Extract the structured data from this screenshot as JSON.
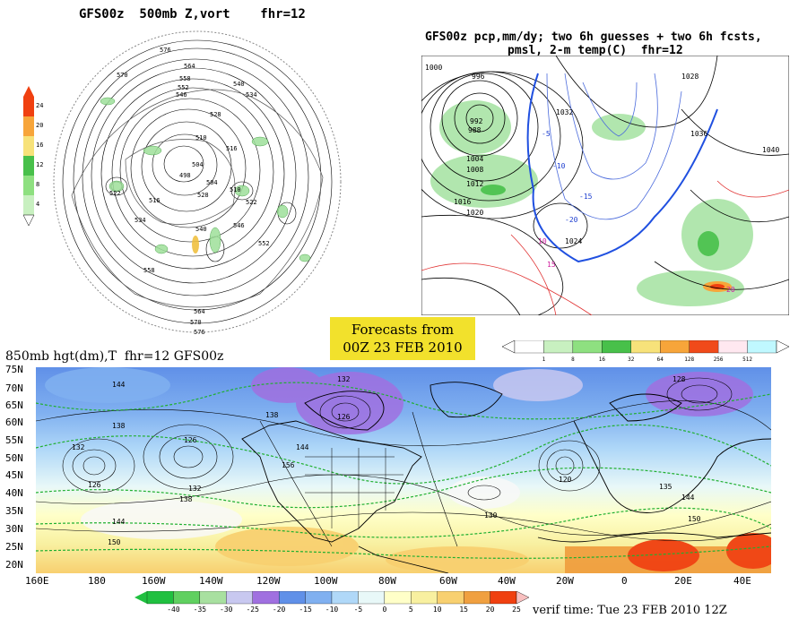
{
  "panel_500mb": {
    "title": "GFS00z  500mb Z,vort    fhr=12",
    "colorbar_ticks": [
      "24",
      "20",
      "16",
      "12",
      "8",
      "4"
    ],
    "contour_labels": [
      "576",
      "570",
      "564",
      "558",
      "552",
      "546",
      "540",
      "534",
      "528",
      "522",
      "516",
      "510",
      "504",
      "498",
      "504",
      "510",
      "516",
      "522",
      "528",
      "534",
      "540",
      "546",
      "552",
      "558",
      "564",
      "570",
      "576"
    ]
  },
  "panel_pcp": {
    "title_line1": "GFS00z pcp,mm/dy; two 6h guesses + two 6h fcsts,",
    "title_line2": "pmsl, 2-m temp(C)  fhr=12",
    "isobar_labels": [
      "1000",
      "996",
      "992",
      "988",
      "1004",
      "1008",
      "1012",
      "1016",
      "1020",
      "1024",
      "1028",
      "1032",
      "1036",
      "1040"
    ],
    "temp_labels": [
      "-5",
      "-10",
      "-15",
      "-20",
      "10",
      "15",
      "20"
    ],
    "colorbar_ticks": [
      "1",
      "8",
      "16",
      "32",
      "64",
      "128",
      "256",
      "512"
    ],
    "colorbar_colors": [
      "#ffffff",
      "#c8f0c0",
      "#8ee080",
      "#48c04a",
      "#f7e27a",
      "#f7a53a",
      "#f04a1a",
      "#ffe8f0",
      "#c0f8ff"
    ]
  },
  "forecast_box": {
    "line1": "Forecasts from",
    "line2": "00Z 23 FEB 2010"
  },
  "panel_850": {
    "title": "850mb hgt(dm),T  fhr=12 GFS00z",
    "lat_labels": [
      "75N",
      "70N",
      "65N",
      "60N",
      "55N",
      "50N",
      "45N",
      "40N",
      "35N",
      "30N",
      "25N",
      "20N"
    ],
    "lon_labels": [
      "160E",
      "180",
      "160W",
      "140W",
      "120W",
      "100W",
      "80W",
      "60W",
      "40W",
      "20W",
      "0",
      "20E",
      "40E"
    ],
    "height_labels": [
      "144",
      "138",
      "132",
      "126",
      "120",
      "126",
      "132",
      "138",
      "144",
      "150",
      "156",
      "144",
      "138",
      "132",
      "128",
      "126",
      "130",
      "135",
      "144",
      "150"
    ],
    "colorbar_ticks": [
      "-40",
      "-35",
      "-30",
      "-25",
      "-20",
      "-15",
      "-10",
      "-5",
      "0",
      "5",
      "10",
      "15",
      "20",
      "25"
    ],
    "colorbar_colors": [
      "#20c040",
      "#60d060",
      "#a8e0a0",
      "#c8c8f0",
      "#a070e0",
      "#6090e8",
      "#80b0f0",
      "#b0d8f8",
      "#e8f8f8",
      "#ffffc8",
      "#f8f0a0",
      "#f8d070",
      "#f0a040",
      "#f04010"
    ]
  },
  "verif_time": "verif time: Tue 23 FEB 2010 12Z"
}
